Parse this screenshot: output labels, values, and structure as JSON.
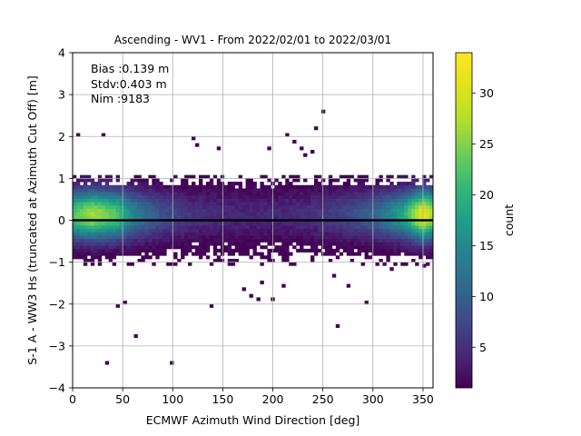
{
  "chart_data": {
    "type": "heatmap",
    "title": "Ascending - WV1 - From 2022/02/01 to 2022/03/01",
    "xlabel": "ECMWF Azimuth Wind Direction [deg]",
    "ylabel": "S-1 A - WW3 Hs (truncated at Azimuth Cut Off) [m]",
    "xlim": [
      0,
      360
    ],
    "ylim": [
      -4,
      4
    ],
    "xticks": [
      0,
      50,
      100,
      150,
      200,
      250,
      300,
      350
    ],
    "yticks": [
      -4,
      -3,
      -2,
      -1,
      0,
      1,
      2,
      3,
      4
    ],
    "grid": true,
    "colormap": "viridis",
    "colorbar": {
      "label": "count",
      "range": [
        1,
        34
      ],
      "ticks": [
        5,
        10,
        15,
        20,
        25,
        30
      ]
    },
    "bin_size": {
      "x": 3.6,
      "y": 0.08
    },
    "reference_line": {
      "y": 0,
      "color": "#000000"
    },
    "stats": {
      "bias": "Bias :0.139 m",
      "stdv": "Stdv:0.403 m",
      "nim": "Nim :9183"
    },
    "total_count": 9183,
    "density_profile": {
      "peak_counts_by_direction": [
        [
          0,
          22
        ],
        [
          20,
          27
        ],
        [
          45,
          22
        ],
        [
          60,
          14
        ],
        [
          90,
          8
        ],
        [
          120,
          5
        ],
        [
          150,
          4
        ],
        [
          180,
          4
        ],
        [
          210,
          4
        ],
        [
          240,
          5
        ],
        [
          270,
          7
        ],
        [
          300,
          10
        ],
        [
          330,
          18
        ],
        [
          350,
          32
        ],
        [
          360,
          26
        ]
      ],
      "spread_sd_m": 0.4,
      "mean_offset_m": 0.14
    },
    "outliers": [
      [
        5,
        2.07
      ],
      [
        30,
        2.0
      ],
      [
        35,
        -3.4
      ],
      [
        45,
        -2.05
      ],
      [
        53,
        -1.95
      ],
      [
        63,
        -2.78
      ],
      [
        100,
        -3.4
      ],
      [
        120,
        1.95
      ],
      [
        125,
        1.8
      ],
      [
        140,
        -2.05
      ],
      [
        145,
        1.75
      ],
      [
        195,
        1.72
      ],
      [
        200,
        -1.85
      ],
      [
        215,
        2.0
      ],
      [
        222,
        1.88
      ],
      [
        232,
        1.55
      ],
      [
        242,
        2.17
      ],
      [
        250,
        2.62
      ],
      [
        265,
        -2.5
      ],
      [
        275,
        -1.55
      ],
      [
        295,
        -1.95
      ],
      [
        185,
        -1.85
      ],
      [
        170,
        -1.65
      ],
      [
        178,
        -1.8
      ],
      [
        190,
        -1.45
      ],
      [
        210,
        -1.55
      ],
      [
        260,
        -1.35
      ],
      [
        320,
        -1.2
      ],
      [
        350,
        -1.1
      ],
      [
        240,
        1.6
      ],
      [
        230,
        1.7
      ]
    ]
  }
}
